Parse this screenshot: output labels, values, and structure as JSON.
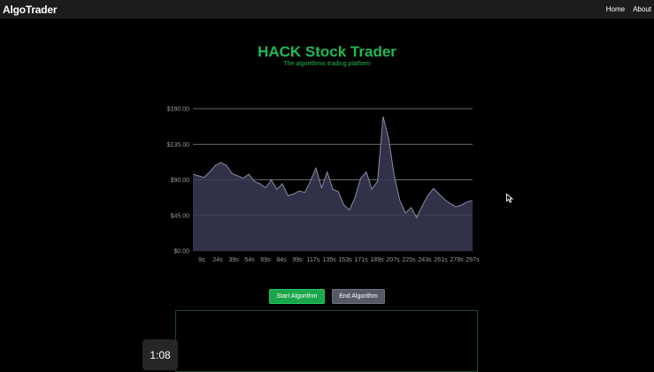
{
  "navbar": {
    "brand": "AlgoTrader",
    "links": [
      "Home",
      "About"
    ]
  },
  "hero": {
    "title": "HACK Stock Trader",
    "subtitle": "The algorithmic trading platform"
  },
  "controls": {
    "start_label": "Start Algorithm",
    "end_label": "End Algorithm"
  },
  "video": {
    "timestamp": "1:08"
  },
  "colors": {
    "accent": "#20b954",
    "area_fill": "#3a3a55",
    "line": "#8a8aa8",
    "grid": "#8c8c8c"
  },
  "chart_data": {
    "type": "area",
    "title": "",
    "xlabel": "",
    "ylabel": "",
    "ylim": [
      0,
      180
    ],
    "yticks": [
      "$0.00",
      "$45.00",
      "$90.00",
      "$135.00",
      "$180.00"
    ],
    "ytick_values": [
      0,
      45,
      90,
      135,
      180
    ],
    "xticks": [
      "9s",
      "24s",
      "39s",
      "54s",
      "69s",
      "84s",
      "99s",
      "117s",
      "135s",
      "153s",
      "171s",
      "189s",
      "207s",
      "225s",
      "243s",
      "261s",
      "279s",
      "297s"
    ],
    "x": [
      0,
      6,
      12,
      18,
      24,
      30,
      36,
      42,
      48,
      54,
      60,
      66,
      72,
      78,
      84,
      90,
      96,
      102,
      108,
      114,
      120,
      126,
      132,
      138,
      144,
      150,
      156,
      162,
      168,
      174,
      180,
      186,
      192,
      198,
      204,
      210,
      216,
      222,
      228,
      234,
      240,
      246,
      252,
      258,
      264,
      270,
      276,
      282,
      288,
      294,
      300
    ],
    "series": [
      {
        "values": [
          97,
          95,
          93,
          100,
          108,
          112,
          108,
          98,
          95,
          92,
          97,
          88,
          85,
          80,
          90,
          78,
          85,
          70,
          72,
          76,
          74,
          88,
          105,
          80,
          100,
          78,
          75,
          58,
          52,
          68,
          92,
          100,
          78,
          88,
          170,
          142,
          95,
          64,
          48,
          55,
          42,
          57,
          70,
          79,
          72,
          65,
          60,
          56,
          58,
          62,
          64
        ]
      }
    ],
    "grid": true,
    "legend": "none"
  }
}
